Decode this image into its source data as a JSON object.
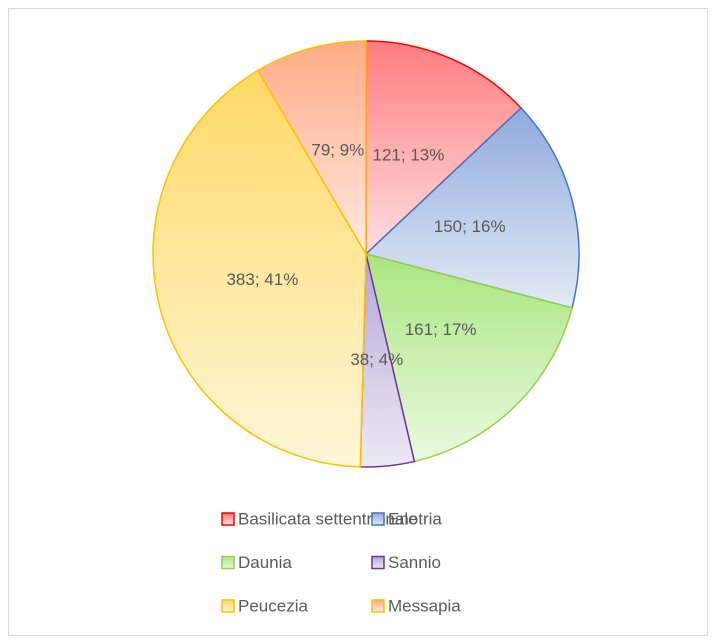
{
  "chart_data": {
    "type": "pie",
    "categories": [
      "Basilicata settentrionale",
      "Enotria",
      "Daunia",
      "Sannio",
      "Peucezia",
      "Messapia"
    ],
    "values": [
      121,
      150,
      161,
      38,
      383,
      79
    ],
    "value_labels": [
      "121; 13%",
      "150; 16%",
      "161; 17%",
      "38; 4%",
      "383; 41%",
      "79; 9%"
    ],
    "colors": [
      "#ff7c80",
      "#8faadc",
      "#a9e67f",
      "#b4a7d6",
      "#ffd966",
      "#ffab85"
    ],
    "edge_colors": [
      "#ff0000",
      "#4472c4",
      "#92d050",
      "#7030a0",
      "#ffc000",
      "#ffc000"
    ],
    "legend": "bottom"
  }
}
